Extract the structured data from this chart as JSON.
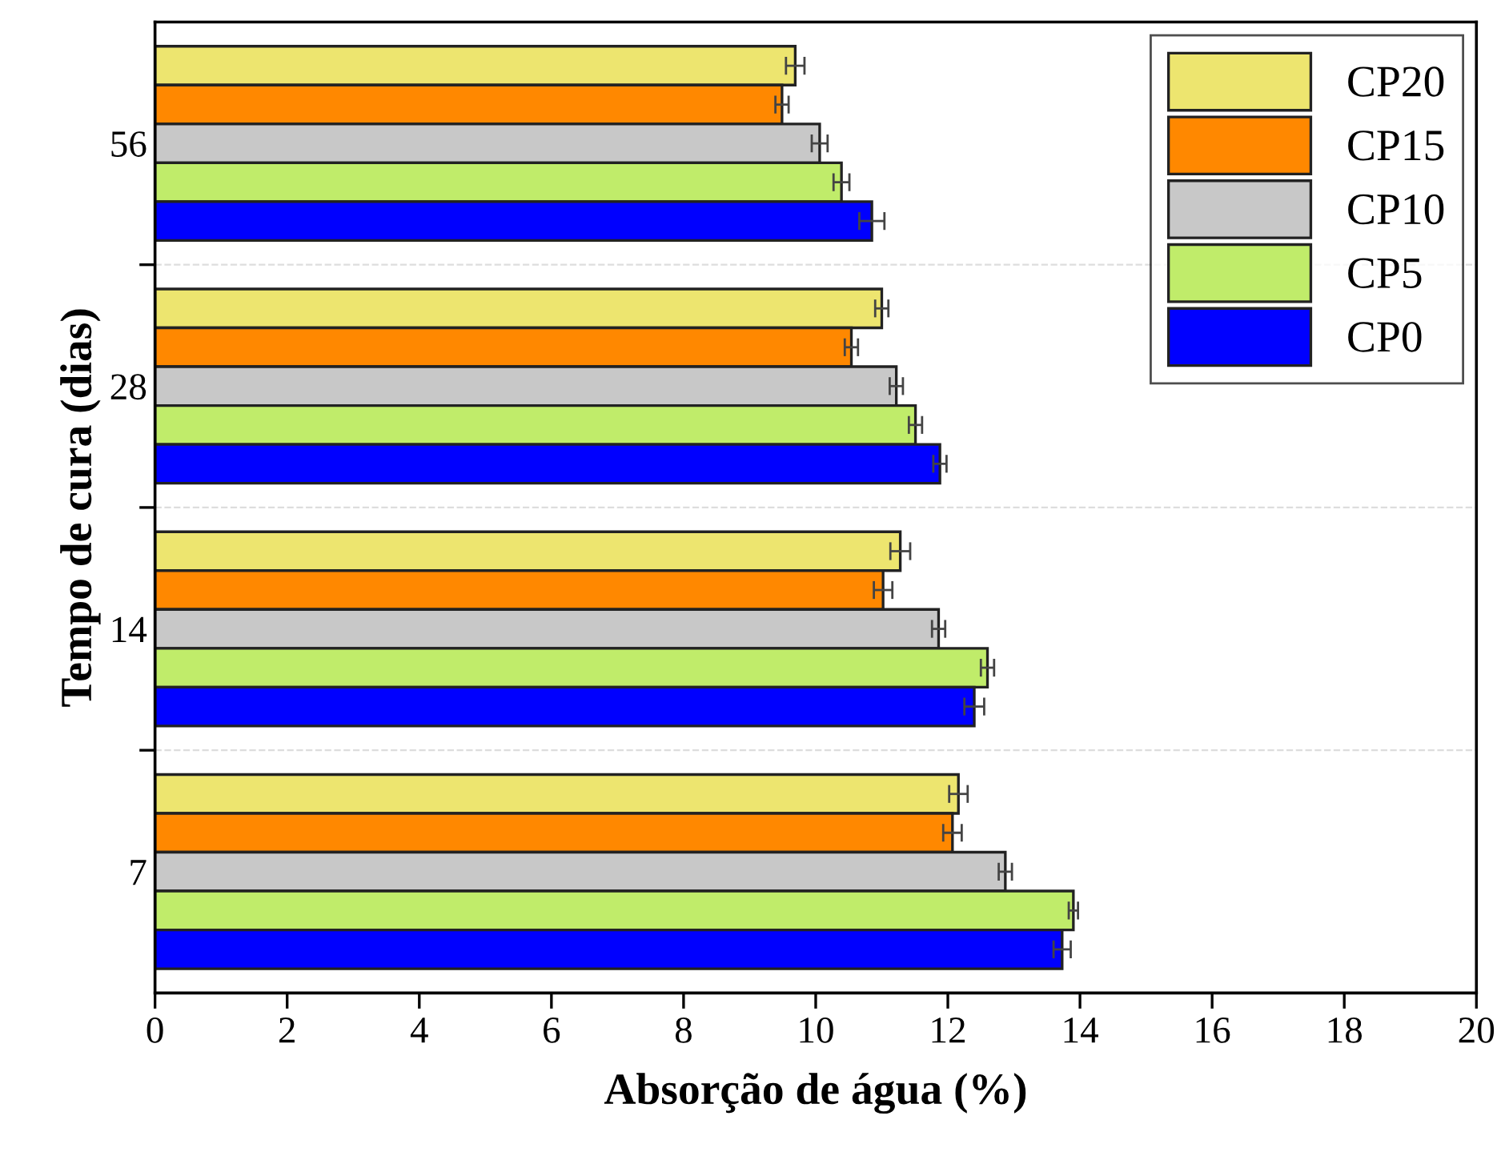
{
  "chart_data": {
    "type": "bar",
    "orientation": "horizontal",
    "xlabel": "Absorção de água (%)",
    "ylabel": "Tempo de cura (dias)",
    "categories": [
      "56",
      "28",
      "14",
      "7"
    ],
    "series": [
      {
        "name": "CP20",
        "color": "#ede56f",
        "values": [
          9.69,
          11.0,
          11.28,
          12.16
        ],
        "errors": [
          0.14,
          0.1,
          0.15,
          0.14
        ]
      },
      {
        "name": "CP15",
        "color": "#ff8800",
        "values": [
          9.49,
          10.54,
          11.02,
          12.07
        ],
        "errors": [
          0.1,
          0.1,
          0.14,
          0.14
        ]
      },
      {
        "name": "CP10",
        "color": "#c8c8c8",
        "values": [
          10.06,
          11.22,
          11.86,
          12.87
        ],
        "errors": [
          0.12,
          0.1,
          0.1,
          0.1
        ]
      },
      {
        "name": "CP5",
        "color": "#c0ec6a",
        "values": [
          10.39,
          11.51,
          12.6,
          13.9
        ],
        "errors": [
          0.12,
          0.1,
          0.1,
          0.07
        ]
      },
      {
        "name": "CP0",
        "color": "#0000ff",
        "values": [
          10.85,
          11.88,
          12.4,
          13.73
        ],
        "errors": [
          0.19,
          0.1,
          0.15,
          0.13
        ]
      }
    ],
    "xlim": [
      0,
      20
    ],
    "xticks": [
      0,
      2,
      4,
      6,
      8,
      10,
      12,
      14,
      16,
      18,
      20
    ],
    "grid": "y",
    "legend": "top right"
  }
}
